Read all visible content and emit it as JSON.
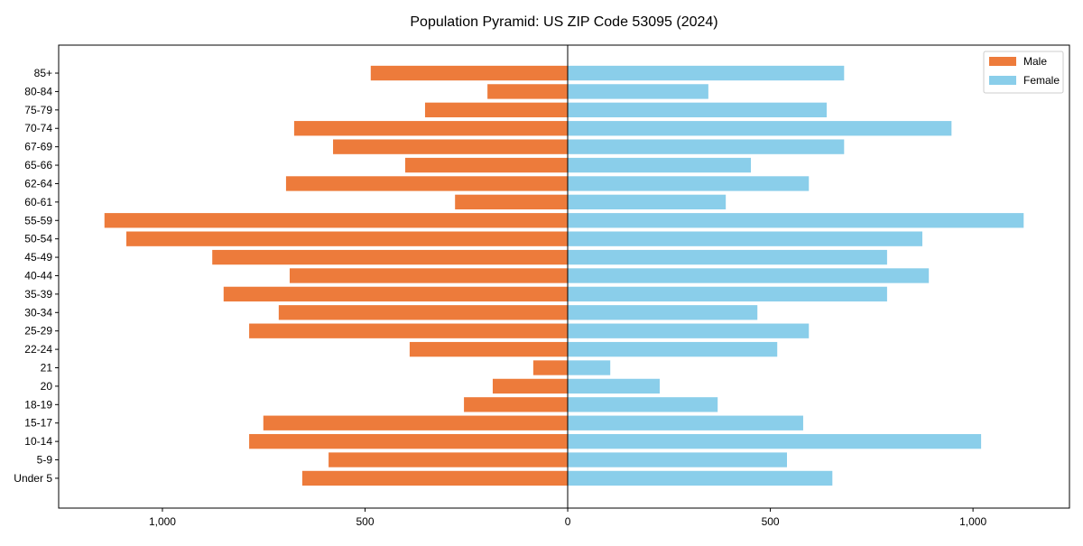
{
  "chart_data": {
    "type": "bar",
    "orientation": "horizontal-pyramid",
    "title": "Population Pyramid: US ZIP Code 53095 (2024)",
    "xlabel": "",
    "ylabel": "",
    "xlim": [
      -1256,
      1238
    ],
    "xticks": [
      -1000,
      -500,
      0,
      500,
      1000
    ],
    "xtick_labels": [
      "1,000",
      "500",
      "0",
      "500",
      "1,000"
    ],
    "legend_position": "top-right",
    "grid": false,
    "categories": [
      "Under 5",
      "5-9",
      "10-14",
      "15-17",
      "18-19",
      "20",
      "21",
      "22-24",
      "25-29",
      "30-34",
      "35-39",
      "40-44",
      "45-49",
      "50-54",
      "55-59",
      "60-61",
      "62-64",
      "65-66",
      "67-69",
      "70-74",
      "75-79",
      "80-84",
      "85+"
    ],
    "series": [
      {
        "name": "Male",
        "color": "#ED7B3B",
        "values": [
          655,
          590,
          786,
          751,
          256,
          185,
          85,
          390,
          786,
          713,
          849,
          686,
          877,
          1089,
          1143,
          278,
          695,
          401,
          579,
          675,
          352,
          198,
          486
        ]
      },
      {
        "name": "Female",
        "color": "#8ACEEA",
        "values": [
          653,
          541,
          1020,
          581,
          370,
          227,
          105,
          517,
          595,
          468,
          788,
          891,
          788,
          875,
          1125,
          390,
          595,
          452,
          682,
          947,
          639,
          347,
          682
        ]
      }
    ]
  }
}
